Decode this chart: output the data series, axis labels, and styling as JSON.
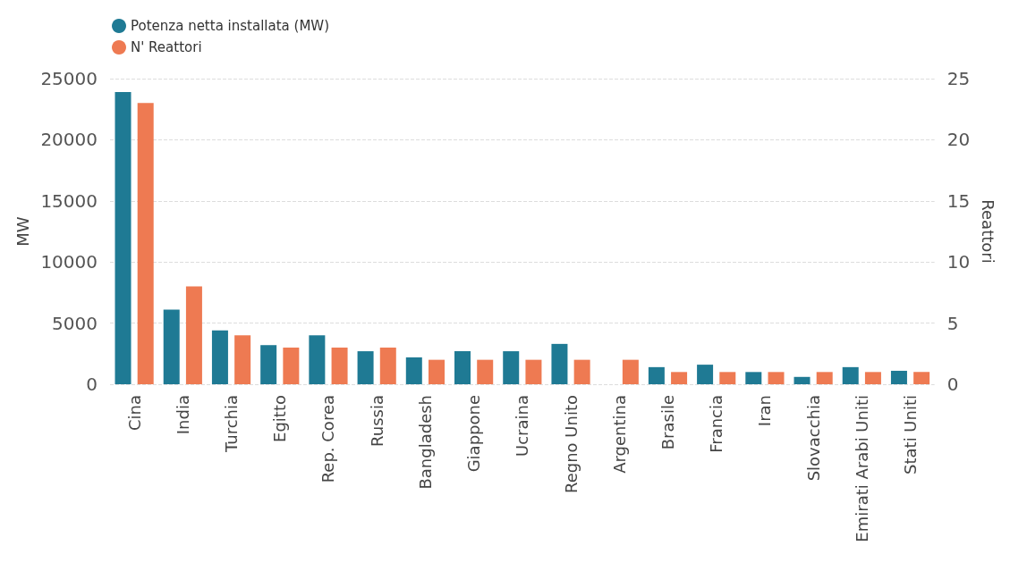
{
  "chart_data": {
    "type": "bar",
    "ylabel": "MW",
    "y2label": "Reattori",
    "categories": [
      "Cina",
      "India",
      "Turchia",
      "Egitto",
      "Rep. Corea",
      "Russia",
      "Bangladesh",
      "Giappone",
      "Ucraina",
      "Regno Unito",
      "Argentina",
      "Brasile",
      "Francia",
      "Iran",
      "Slovacchia",
      "Emirati Arabi Uniti",
      "Stati Uniti"
    ],
    "series": [
      {
        "name": "Potenza netta installata (MW)",
        "color": "#1f7a94",
        "values": [
          23900,
          6100,
          4400,
          3200,
          4000,
          2700,
          2200,
          2700,
          2700,
          3300,
          null,
          1400,
          1600,
          1000,
          600,
          1400,
          1100
        ]
      },
      {
        "name": "N' Reattori",
        "color": "#ee7a52",
        "axis": "y2",
        "values": [
          23,
          8,
          4,
          3,
          3,
          3,
          2,
          2,
          2,
          2,
          2,
          1,
          1,
          1,
          1,
          1,
          1
        ]
      }
    ],
    "ylim": [
      0,
      25000
    ],
    "yticks": [
      0,
      5000,
      10000,
      15000,
      20000,
      25000
    ],
    "y2lim": [
      0,
      25
    ],
    "y2ticks": [
      0,
      5,
      10,
      15,
      20,
      25
    ],
    "grid": "y",
    "legend": "top left"
  }
}
